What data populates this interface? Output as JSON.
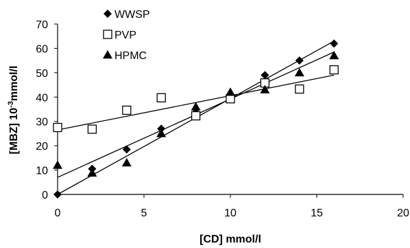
{
  "chart_data": {
    "type": "scatter",
    "xlabel": "[CD] mmol/l",
    "ylabel_main": "[MBZ] 10",
    "ylabel_sup": "-3",
    "ylabel_tail": "mmol/l",
    "xlim": [
      0,
      20
    ],
    "ylim": [
      0,
      70
    ],
    "xticks": [
      0,
      5,
      10,
      15,
      20
    ],
    "yticks": [
      0,
      10,
      20,
      30,
      40,
      50,
      60,
      70
    ],
    "grid": false,
    "legend_position": "top-left",
    "trendlines": true,
    "series": [
      {
        "name": "WWSP",
        "marker": "diamond-filled",
        "x": [
          0,
          2,
          4,
          6,
          8,
          10,
          12,
          14,
          16
        ],
        "y": [
          0,
          10.5,
          18.5,
          27,
          35,
          41,
          49,
          55,
          62
        ],
        "trend": [
          [
            0,
            0
          ],
          [
            16,
            63
          ]
        ]
      },
      {
        "name": "PVP",
        "marker": "square-open",
        "x": [
          0,
          2,
          4,
          6,
          8,
          10,
          12,
          14,
          16
        ],
        "y": [
          27.5,
          26.8,
          34.6,
          39.7,
          32.3,
          39.3,
          45.8,
          43.3,
          51.2
        ],
        "trend": [
          [
            0,
            26.5
          ],
          [
            16,
            49
          ]
        ]
      },
      {
        "name": "HPMC",
        "marker": "triangle-filled",
        "x": [
          0,
          2,
          4,
          6,
          8,
          10,
          12,
          14,
          16
        ],
        "y": [
          12,
          8.8,
          13,
          25,
          36,
          42,
          43,
          50,
          57
        ],
        "trend": [
          [
            0,
            7
          ],
          [
            16,
            58.5
          ]
        ]
      }
    ]
  }
}
